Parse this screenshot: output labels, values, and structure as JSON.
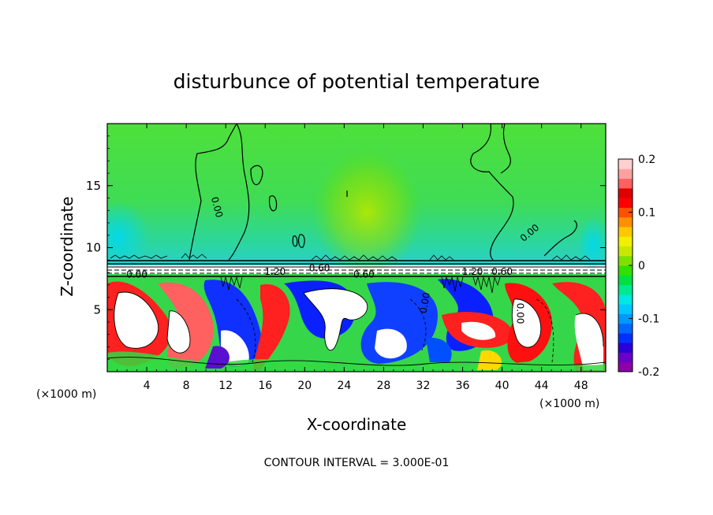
{
  "chart_data": {
    "type": "heatmap",
    "title": "disturbunce of potential temperature",
    "xlabel": "X-coordinate",
    "ylabel": "Z-coordinate",
    "x_unit_left": "(×1000 m)",
    "x_unit_right": "(×1000 m)",
    "xlim": [
      0,
      50.5
    ],
    "ylim": [
      0,
      20
    ],
    "x_ticks": [
      "4",
      "8",
      "12",
      "16",
      "20",
      "24",
      "28",
      "32",
      "36",
      "40",
      "44",
      "48"
    ],
    "x_tick_values": [
      4,
      8,
      12,
      16,
      20,
      24,
      28,
      32,
      36,
      40,
      44,
      48
    ],
    "y_ticks": [
      "5",
      "10",
      "15"
    ],
    "y_tick_values": [
      5,
      10,
      15
    ],
    "colorbar": {
      "min": -0.2,
      "max": 0.2,
      "tick_labels": [
        "0.2",
        "0.1",
        "0",
        "-0.1",
        "-0.2"
      ],
      "tick_values": [
        0.2,
        0.1,
        0,
        -0.1,
        -0.2
      ],
      "colors": [
        "#8b00a8",
        "#6a00c8",
        "#2a00d8",
        "#0030ff",
        "#0066ff",
        "#0099ff",
        "#00c8ff",
        "#00e8e0",
        "#00e890",
        "#00e040",
        "#30e000",
        "#7fe000",
        "#c8e800",
        "#f0f000",
        "#ffc800",
        "#ff9000",
        "#ff5000",
        "#ff0000",
        "#e00000",
        "#ff6060",
        "#ffa0a0",
        "#ffd0d0"
      ]
    },
    "contour_labels": [
      {
        "text": "0.00",
        "x": 10.8,
        "z": 13.2,
        "rotate": 75
      },
      {
        "text": "0.00",
        "x": 43.0,
        "z": 11.0,
        "rotate": -40
      },
      {
        "text": "0.00",
        "x": 3.0,
        "z": 7.6,
        "rotate": 0
      },
      {
        "text": "1.20",
        "x": 17.0,
        "z": 7.8,
        "rotate": 0
      },
      {
        "text": "0.60",
        "x": 21.5,
        "z": 8.1,
        "rotate": 0
      },
      {
        "text": "0.60",
        "x": 26.0,
        "z": 7.6,
        "rotate": 0
      },
      {
        "text": "0.00",
        "x": 32.5,
        "z": 5.5,
        "rotate": -80
      },
      {
        "text": "1.20",
        "x": 37.0,
        "z": 7.8,
        "rotate": 0
      },
      {
        "text": "0.60",
        "x": 40.0,
        "z": 7.8,
        "rotate": 0
      },
      {
        "text": "0.00",
        "x": 41.5,
        "z": 4.7,
        "rotate": 90
      }
    ],
    "contour_interval_text": "CONTOUR INTERVAL = 3.000E-01"
  }
}
